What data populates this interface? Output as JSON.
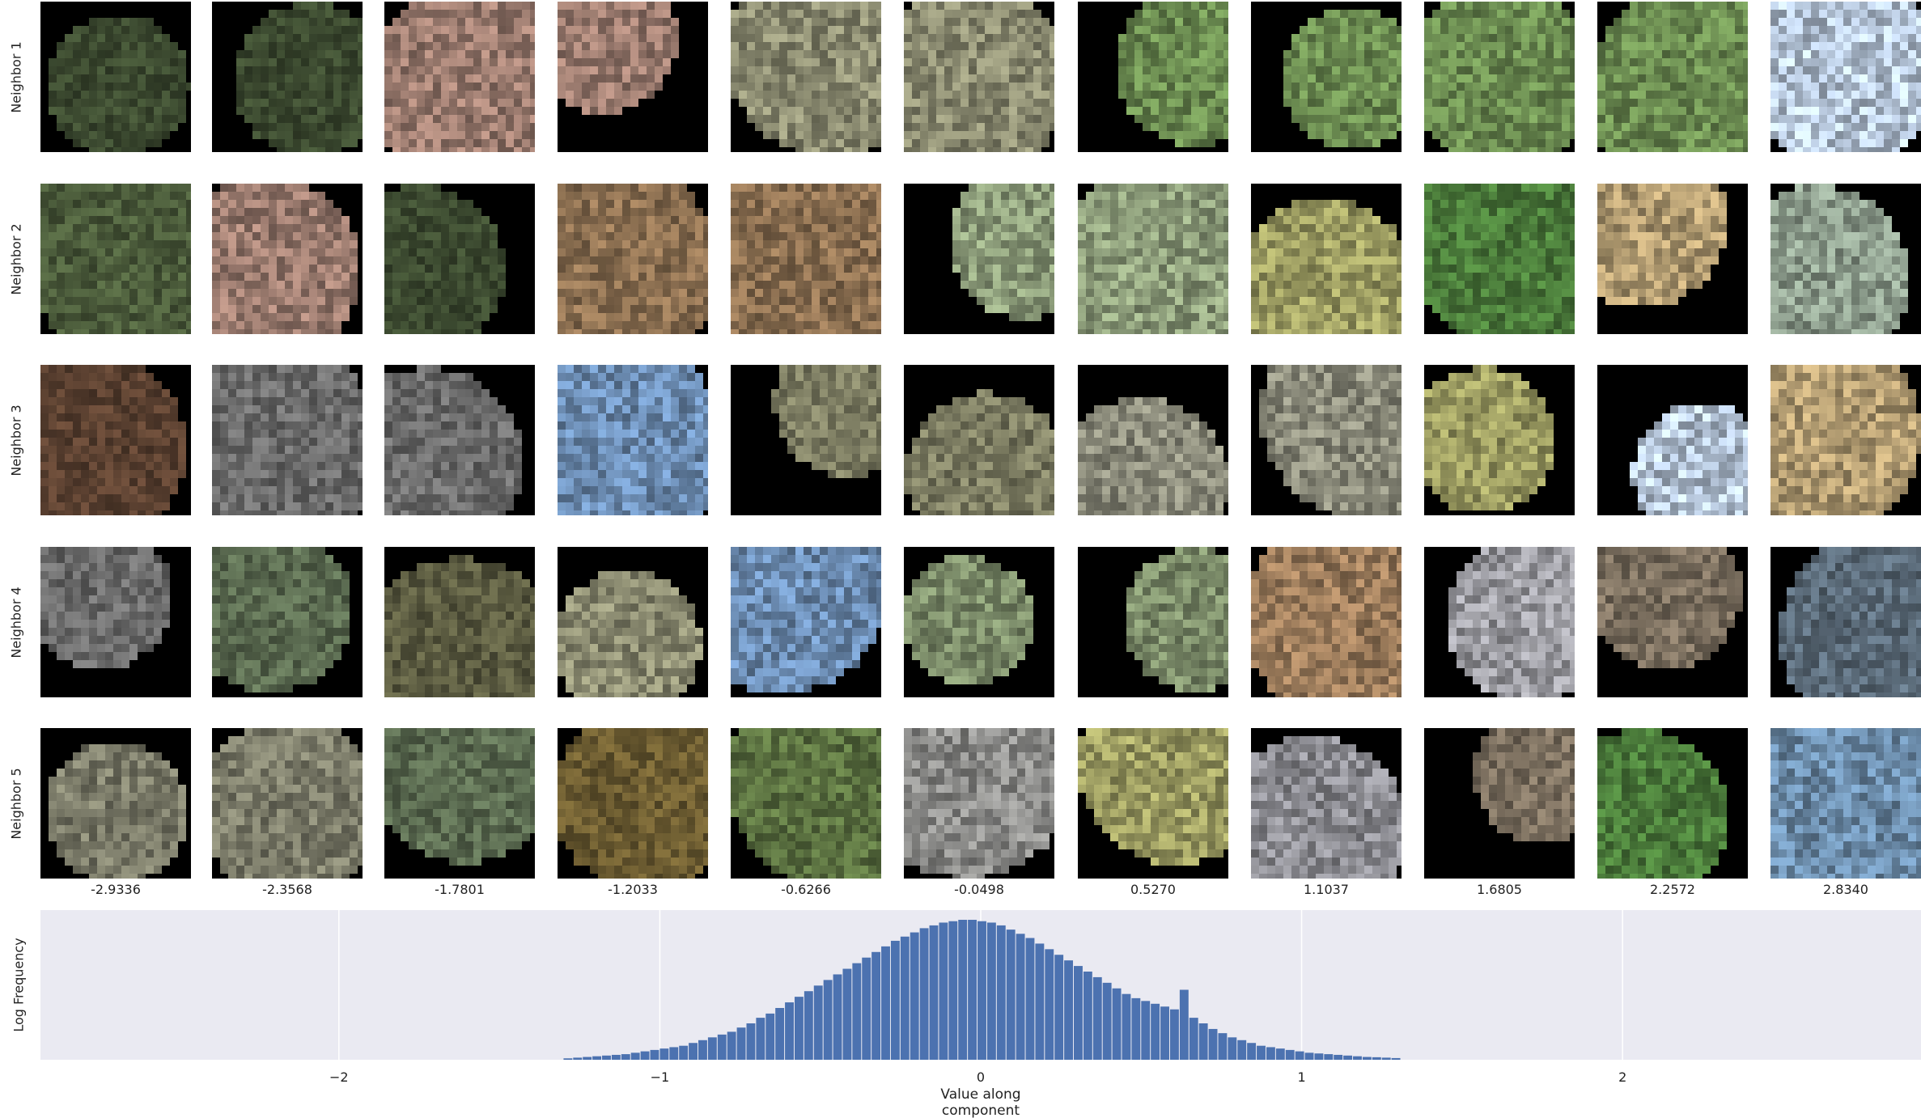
{
  "figure": {
    "row_labels": [
      "Neighbor 1",
      "Neighbor 2",
      "Neighbor 3",
      "Neighbor 4",
      "Neighbor 5"
    ],
    "column_values": [
      "-2.9336",
      "-2.3568",
      "-1.7801",
      "-1.2033",
      "-0.6266",
      "-0.0498",
      "0.5270",
      "1.1037",
      "1.6805",
      "2.2572",
      "2.8340"
    ],
    "tiles": [
      [
        "#3c4a30",
        "#3c4a30",
        "#9a7a6e",
        "#9a7a6e",
        "#8a8a70",
        "#8a8a70",
        "#6a8a50",
        "#6a8a50",
        "#6a8a50",
        "#6a8a50",
        "#b4c4d8"
      ],
      [
        "#4a5a3a",
        "#9a7a6e",
        "#3c4a30",
        "#8a6e50",
        "#8a6e50",
        "#8a9a78",
        "#8a9a78",
        "#9a9a60",
        "#4a7a3a",
        "#b09a70",
        "#8a9a8a"
      ],
      [
        "#5a4030",
        "#6a6a6a",
        "#6a6a6a",
        "#6a8ab0",
        "#7a7a60",
        "#7a7a60",
        "#8a8a7a",
        "#8a8a7a",
        "#9a9a60",
        "#b4c4d8",
        "#b09a70"
      ],
      [
        "#6a6a6a",
        "#5a6a50",
        "#5a5a40",
        "#8a8a70",
        "#6a8ab0",
        "#7a8a68",
        "#7a8a68",
        "#9a7a5a",
        "#9a9aa0",
        "#7a6e5e",
        "#5a6a78"
      ],
      [
        "#7a7a68",
        "#7a7a68",
        "#5a6a50",
        "#6a5a30",
        "#5a7040",
        "#8a8a88",
        "#9a9a60",
        "#8a8a90",
        "#7a6e5e",
        "#4a7a3a",
        "#6a8aa8"
      ]
    ]
  },
  "chart_data": {
    "type": "bar",
    "title": "",
    "xlabel": "Value along component",
    "ylabel": "Log Frequency",
    "xlim": [
      -2.93,
      2.93
    ],
    "x_ticks": [
      -2,
      -1,
      0,
      1,
      2
    ],
    "x_tick_labels": [
      "−2",
      "−1",
      "0",
      "1",
      "2"
    ],
    "grid": true,
    "bar_color": "#4c72b0",
    "background_color": "#eaeaf2",
    "bins": [
      -1.3,
      -1.27,
      -1.24,
      -1.21,
      -1.18,
      -1.15,
      -1.12,
      -1.09,
      -1.06,
      -1.03,
      -1.0,
      -0.97,
      -0.94,
      -0.91,
      -0.88,
      -0.85,
      -0.82,
      -0.79,
      -0.76,
      -0.73,
      -0.7,
      -0.67,
      -0.64,
      -0.61,
      -0.58,
      -0.55,
      -0.52,
      -0.49,
      -0.46,
      -0.43,
      -0.4,
      -0.37,
      -0.34,
      -0.31,
      -0.28,
      -0.25,
      -0.22,
      -0.19,
      -0.16,
      -0.13,
      -0.1,
      -0.07,
      -0.04,
      -0.01,
      0.02,
      0.05,
      0.08,
      0.11,
      0.14,
      0.17,
      0.2,
      0.23,
      0.26,
      0.29,
      0.32,
      0.35,
      0.38,
      0.41,
      0.44,
      0.47,
      0.5,
      0.53,
      0.56,
      0.59,
      0.62,
      0.65,
      0.68,
      0.71,
      0.74,
      0.77,
      0.8,
      0.83,
      0.86,
      0.89,
      0.92,
      0.95,
      0.98,
      1.01,
      1.04,
      1.07,
      1.1,
      1.13,
      1.16,
      1.19,
      1.22,
      1.25,
      1.28
    ],
    "values": [
      0.01,
      0.015,
      0.02,
      0.025,
      0.03,
      0.035,
      0.04,
      0.05,
      0.06,
      0.07,
      0.08,
      0.09,
      0.1,
      0.12,
      0.14,
      0.16,
      0.18,
      0.2,
      0.23,
      0.26,
      0.3,
      0.33,
      0.37,
      0.41,
      0.45,
      0.49,
      0.53,
      0.57,
      0.61,
      0.65,
      0.69,
      0.73,
      0.77,
      0.81,
      0.85,
      0.88,
      0.91,
      0.94,
      0.96,
      0.98,
      0.99,
      1.0,
      1.0,
      0.99,
      0.98,
      0.96,
      0.93,
      0.9,
      0.87,
      0.83,
      0.79,
      0.75,
      0.71,
      0.67,
      0.63,
      0.59,
      0.55,
      0.51,
      0.47,
      0.44,
      0.42,
      0.4,
      0.38,
      0.36,
      0.5,
      0.3,
      0.26,
      0.22,
      0.19,
      0.16,
      0.14,
      0.12,
      0.1,
      0.09,
      0.08,
      0.07,
      0.06,
      0.05,
      0.045,
      0.04,
      0.035,
      0.03,
      0.025,
      0.02,
      0.018,
      0.015,
      0.012
    ]
  }
}
